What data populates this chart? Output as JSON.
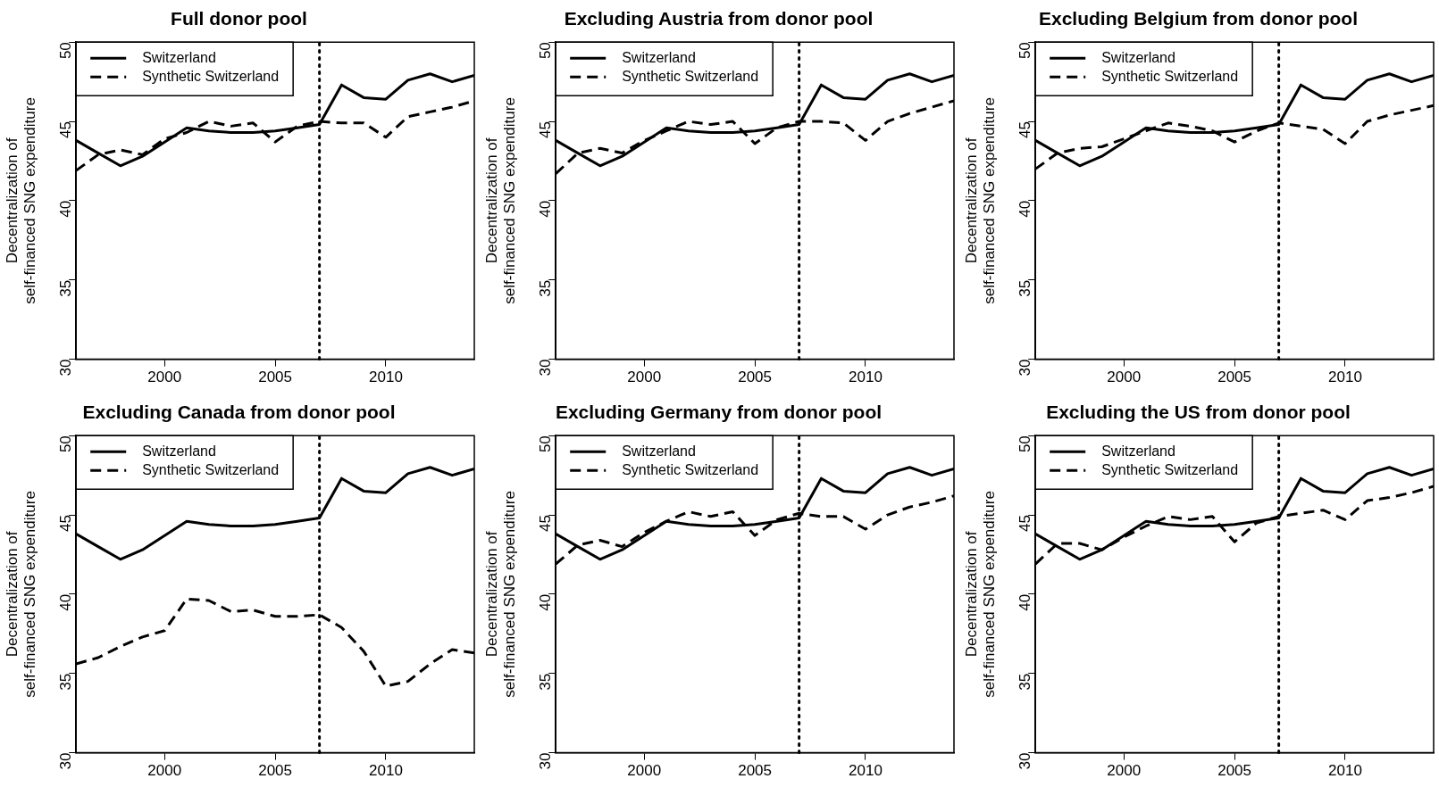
{
  "chart_data": [
    {
      "type": "line",
      "title": "Full donor pool",
      "ylabel": "Decentralization of\nself-financed SNG expenditure",
      "x": [
        1996,
        1997,
        1998,
        1999,
        2000,
        2001,
        2002,
        2003,
        2004,
        2005,
        2006,
        2007,
        2008,
        2009,
        2010,
        2011,
        2012,
        2013,
        2014
      ],
      "xlim": [
        1996,
        2014
      ],
      "xticks": [
        2000,
        2005,
        2010
      ],
      "ylim": [
        30,
        50
      ],
      "yticks": [
        30,
        35,
        40,
        45,
        50
      ],
      "grid": false,
      "legend": "top left",
      "marker": "none",
      "ref_lines": [
        {
          "axis": "x",
          "value": 2007,
          "line_style": "dotted",
          "color": "#000000"
        }
      ],
      "series": [
        {
          "name": "Switzerland",
          "color": "#000000",
          "line_style": "solid",
          "values": [
            43.8,
            43.0,
            42.2,
            42.8,
            43.7,
            44.6,
            44.4,
            44.3,
            44.3,
            44.4,
            44.6,
            44.8,
            47.3,
            46.5,
            46.4,
            47.6,
            48.0,
            47.5,
            47.9
          ]
        },
        {
          "name": "Synthetic Switzerland",
          "color": "#000000",
          "line_style": "dashed",
          "values": [
            41.9,
            42.9,
            43.2,
            42.9,
            43.9,
            44.3,
            45.0,
            44.7,
            44.9,
            43.7,
            44.7,
            45.0,
            44.9,
            44.9,
            44.0,
            45.3,
            45.6,
            45.9,
            46.3
          ]
        }
      ]
    },
    {
      "type": "line",
      "title": "Excluding Austria from donor pool",
      "ylabel": "Decentralization of\nself-financed SNG expenditure",
      "x": [
        1996,
        1997,
        1998,
        1999,
        2000,
        2001,
        2002,
        2003,
        2004,
        2005,
        2006,
        2007,
        2008,
        2009,
        2010,
        2011,
        2012,
        2013,
        2014
      ],
      "xlim": [
        1996,
        2014
      ],
      "xticks": [
        2000,
        2005,
        2010
      ],
      "ylim": [
        30,
        50
      ],
      "yticks": [
        30,
        35,
        40,
        45,
        50
      ],
      "grid": false,
      "legend": "top left",
      "marker": "none",
      "ref_lines": [
        {
          "axis": "x",
          "value": 2007,
          "line_style": "dotted",
          "color": "#000000"
        }
      ],
      "series": [
        {
          "name": "Switzerland",
          "color": "#000000",
          "line_style": "solid",
          "values": [
            43.8,
            43.0,
            42.2,
            42.8,
            43.7,
            44.6,
            44.4,
            44.3,
            44.3,
            44.4,
            44.6,
            44.8,
            47.3,
            46.5,
            46.4,
            47.6,
            48.0,
            47.5,
            47.9
          ]
        },
        {
          "name": "Synthetic Switzerland",
          "color": "#000000",
          "line_style": "dashed",
          "values": [
            41.7,
            43.0,
            43.3,
            43.0,
            43.8,
            44.4,
            45.0,
            44.8,
            45.0,
            43.6,
            44.6,
            45.0,
            45.0,
            44.9,
            43.8,
            45.0,
            45.5,
            45.9,
            46.3
          ]
        }
      ]
    },
    {
      "type": "line",
      "title": "Excluding Belgium from donor pool",
      "ylabel": "Decentralization of\nself-financed SNG expenditure",
      "x": [
        1996,
        1997,
        1998,
        1999,
        2000,
        2001,
        2002,
        2003,
        2004,
        2005,
        2006,
        2007,
        2008,
        2009,
        2010,
        2011,
        2012,
        2013,
        2014
      ],
      "xlim": [
        1996,
        2014
      ],
      "xticks": [
        2000,
        2005,
        2010
      ],
      "ylim": [
        30,
        50
      ],
      "yticks": [
        30,
        35,
        40,
        45,
        50
      ],
      "grid": false,
      "legend": "top left",
      "marker": "none",
      "ref_lines": [
        {
          "axis": "x",
          "value": 2007,
          "line_style": "dotted",
          "color": "#000000"
        }
      ],
      "series": [
        {
          "name": "Switzerland",
          "color": "#000000",
          "line_style": "solid",
          "values": [
            43.8,
            43.0,
            42.2,
            42.8,
            43.7,
            44.6,
            44.4,
            44.3,
            44.3,
            44.4,
            44.6,
            44.8,
            47.3,
            46.5,
            46.4,
            47.6,
            48.0,
            47.5,
            47.9
          ]
        },
        {
          "name": "Synthetic Switzerland",
          "color": "#000000",
          "line_style": "dashed",
          "values": [
            42.0,
            43.0,
            43.3,
            43.4,
            43.9,
            44.4,
            44.9,
            44.7,
            44.4,
            43.7,
            44.4,
            44.9,
            44.7,
            44.5,
            43.6,
            45.0,
            45.4,
            45.7,
            46.0
          ]
        }
      ]
    },
    {
      "type": "line",
      "title": "Excluding Canada from donor pool",
      "ylabel": "Decentralization of\nself-financed SNG expenditure",
      "x": [
        1996,
        1997,
        1998,
        1999,
        2000,
        2001,
        2002,
        2003,
        2004,
        2005,
        2006,
        2007,
        2008,
        2009,
        2010,
        2011,
        2012,
        2013,
        2014
      ],
      "xlim": [
        1996,
        2014
      ],
      "xticks": [
        2000,
        2005,
        2010
      ],
      "ylim": [
        30,
        50
      ],
      "yticks": [
        30,
        35,
        40,
        45,
        50
      ],
      "grid": false,
      "legend": "top left",
      "marker": "none",
      "ref_lines": [
        {
          "axis": "x",
          "value": 2007,
          "line_style": "dotted",
          "color": "#000000"
        }
      ],
      "series": [
        {
          "name": "Switzerland",
          "color": "#000000",
          "line_style": "solid",
          "values": [
            43.8,
            43.0,
            42.2,
            42.8,
            43.7,
            44.6,
            44.4,
            44.3,
            44.3,
            44.4,
            44.6,
            44.8,
            47.3,
            46.5,
            46.4,
            47.6,
            48.0,
            47.5,
            47.9
          ]
        },
        {
          "name": "Synthetic Switzerland",
          "color": "#000000",
          "line_style": "dashed",
          "values": [
            35.6,
            36.0,
            36.7,
            37.3,
            37.7,
            39.7,
            39.6,
            38.9,
            39.0,
            38.6,
            38.6,
            38.7,
            37.9,
            36.4,
            34.2,
            34.5,
            35.6,
            36.5,
            36.3
          ]
        }
      ]
    },
    {
      "type": "line",
      "title": "Excluding Germany from donor pool",
      "ylabel": "Decentralization of\nself-financed SNG expenditure",
      "x": [
        1996,
        1997,
        1998,
        1999,
        2000,
        2001,
        2002,
        2003,
        2004,
        2005,
        2006,
        2007,
        2008,
        2009,
        2010,
        2011,
        2012,
        2013,
        2014
      ],
      "xlim": [
        1996,
        2014
      ],
      "xticks": [
        2000,
        2005,
        2010
      ],
      "ylim": [
        30,
        50
      ],
      "yticks": [
        30,
        35,
        40,
        45,
        50
      ],
      "grid": false,
      "legend": "top left",
      "marker": "none",
      "ref_lines": [
        {
          "axis": "x",
          "value": 2007,
          "line_style": "dotted",
          "color": "#000000"
        }
      ],
      "series": [
        {
          "name": "Switzerland",
          "color": "#000000",
          "line_style": "solid",
          "values": [
            43.8,
            43.0,
            42.2,
            42.8,
            43.7,
            44.6,
            44.4,
            44.3,
            44.3,
            44.4,
            44.6,
            44.8,
            47.3,
            46.5,
            46.4,
            47.6,
            48.0,
            47.5,
            47.9
          ]
        },
        {
          "name": "Synthetic Switzerland",
          "color": "#000000",
          "line_style": "dashed",
          "values": [
            41.9,
            43.1,
            43.4,
            43.0,
            43.9,
            44.6,
            45.2,
            44.9,
            45.2,
            43.7,
            44.7,
            45.1,
            44.9,
            44.9,
            44.1,
            45.0,
            45.5,
            45.8,
            46.2
          ]
        }
      ]
    },
    {
      "type": "line",
      "title": "Excluding the US from donor pool",
      "ylabel": "Decentralization of\nself-financed SNG expenditure",
      "x": [
        1996,
        1997,
        1998,
        1999,
        2000,
        2001,
        2002,
        2003,
        2004,
        2005,
        2006,
        2007,
        2008,
        2009,
        2010,
        2011,
        2012,
        2013,
        2014
      ],
      "xlim": [
        1996,
        2014
      ],
      "xticks": [
        2000,
        2005,
        2010
      ],
      "ylim": [
        30,
        50
      ],
      "yticks": [
        30,
        35,
        40,
        45,
        50
      ],
      "grid": false,
      "legend": "top left",
      "marker": "none",
      "ref_lines": [
        {
          "axis": "x",
          "value": 2007,
          "line_style": "dotted",
          "color": "#000000"
        }
      ],
      "series": [
        {
          "name": "Switzerland",
          "color": "#000000",
          "line_style": "solid",
          "values": [
            43.8,
            43.0,
            42.2,
            42.8,
            43.7,
            44.6,
            44.4,
            44.3,
            44.3,
            44.4,
            44.6,
            44.8,
            47.3,
            46.5,
            46.4,
            47.6,
            48.0,
            47.5,
            47.9
          ]
        },
        {
          "name": "Synthetic Switzerland",
          "color": "#000000",
          "line_style": "dashed",
          "values": [
            41.9,
            43.2,
            43.2,
            42.8,
            43.6,
            44.3,
            44.9,
            44.7,
            44.9,
            43.3,
            44.5,
            44.9,
            45.1,
            45.3,
            44.7,
            45.9,
            46.1,
            46.4,
            46.8
          ]
        }
      ]
    }
  ]
}
